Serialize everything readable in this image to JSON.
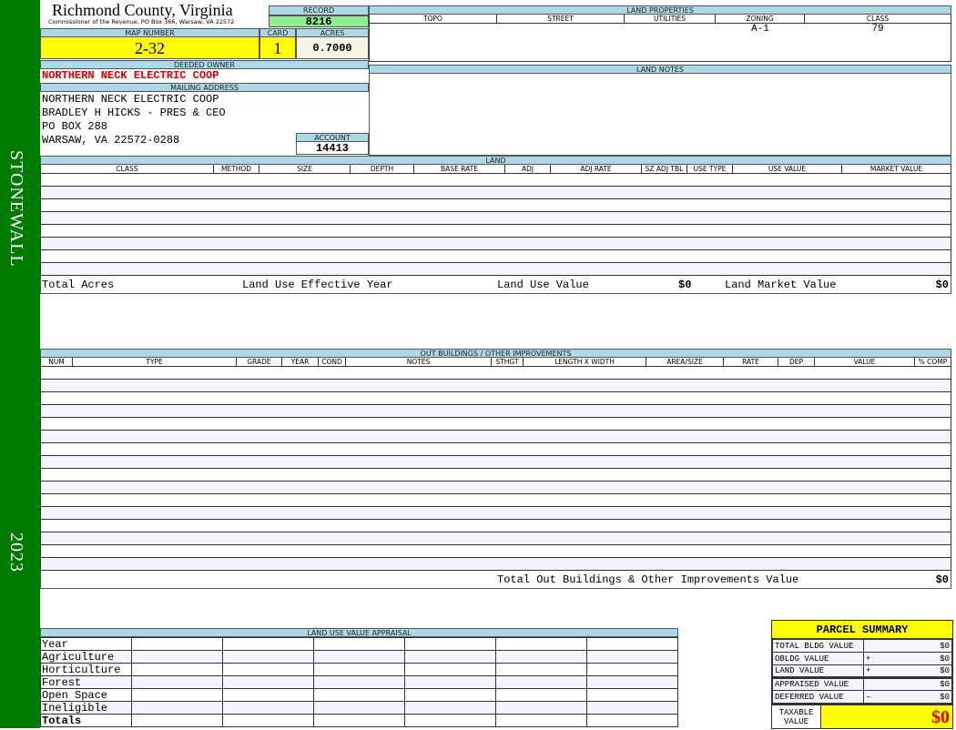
{
  "sidebar": {
    "district": "STONEWALL",
    "year": "2023"
  },
  "header": {
    "county": "Richmond County, Virginia",
    "office": "Commissioner of the Revenue, PO Box 366, Warsaw, VA 22572"
  },
  "record": {
    "label": "RECORD",
    "value": "8216"
  },
  "map": {
    "label": "MAP NUMBER",
    "value": "2-32"
  },
  "card": {
    "label": "CARD",
    "value": "1"
  },
  "acres": {
    "label": "ACRES",
    "value": "0.7000"
  },
  "owner": {
    "label": "DEEDED OWNER",
    "value": "NORTHERN NECK ELECTRIC COOP"
  },
  "mailing": {
    "label": "MAILING ADDRESS",
    "lines": [
      "NORTHERN NECK ELECTRIC COOP",
      "BRADLEY H HICKS - PRES & CEO",
      "PO BOX 288",
      "WARSAW, VA 22572-0288"
    ]
  },
  "account": {
    "label": "ACCOUNT",
    "value": "14413"
  },
  "land_properties": {
    "title": "LAND PROPERTIES",
    "headers": [
      "TOPO",
      "STREET",
      "UTILITIES",
      "ZONING",
      "CLASS"
    ],
    "values": [
      "",
      "",
      "",
      "A-1",
      "79"
    ]
  },
  "land_notes": {
    "title": "LAND NOTES"
  },
  "land": {
    "title": "LAND",
    "headers": [
      "CLASS",
      "METHOD",
      "SIZE",
      "DEPTH",
      "BASE RATE",
      "ADJ",
      "ADJ RATE",
      "SZ ADJ TBL",
      "USE TYPE",
      "USE VALUE",
      "MARKET VALUE"
    ],
    "totals": {
      "total_acres": "Total Acres",
      "effective_year": "Land Use Effective Year",
      "use_value_label": "Land Use Value",
      "use_value": "$0",
      "market_value_label": "Land Market Value",
      "market_value": "$0"
    }
  },
  "outbuildings": {
    "title": "OUT BUILDINGS / OTHER IMPROVEMENTS",
    "headers": [
      "NUM",
      "TYPE",
      "GRADE",
      "YEAR",
      "COND",
      "NOTES",
      "STHGT",
      "LENGTH X WIDTH",
      "AREA/SIZE",
      "RATE",
      "DEP",
      "VALUE",
      "% COMP"
    ],
    "total_label": "Total Out Buildings & Other Improvements Value",
    "total_value": "$0"
  },
  "land_use_appraisal": {
    "title": "LAND USE VALUE APPRAISAL",
    "rows": [
      "Year",
      "Agriculture",
      "Horticulture",
      "Forest",
      "Open Space",
      "Ineligible",
      "Totals"
    ]
  },
  "parcel_summary": {
    "title": "PARCEL SUMMARY",
    "rows": [
      {
        "label": "TOTAL BLDG VALUE",
        "op": "",
        "value": "$0"
      },
      {
        "label": "OBLDG VALUE",
        "op": "+",
        "value": "$0"
      },
      {
        "label": "LAND VALUE",
        "op": "+",
        "value": "$0"
      },
      {
        "label": "APPRAISED VALUE",
        "op": "",
        "value": "$0"
      },
      {
        "label": "DEFERRED VALUE",
        "op": "–",
        "value": "$0"
      }
    ],
    "taxable_label": "TAXABLE VALUE",
    "taxable_value": "$0"
  },
  "colors": {
    "sidebar": "#007a00",
    "header": "#add8e6",
    "highlight": "#ffff00",
    "record": "#90ee90",
    "owner": "#e00000"
  }
}
